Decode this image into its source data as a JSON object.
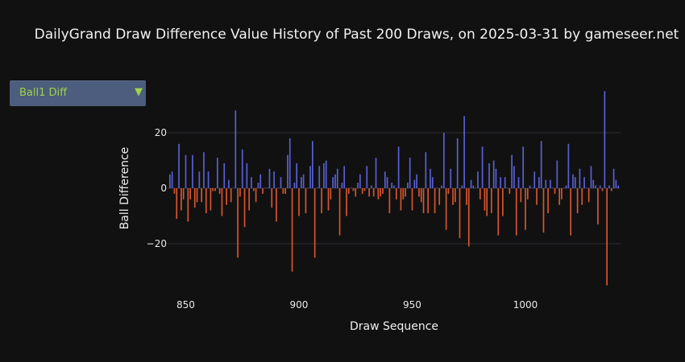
{
  "title": "DailyGrand Draw Difference Value History of Past 200 Draws, on 2025-03-31 by gameseer.net",
  "dropdown": {
    "selected": "Ball1 Diff",
    "icon": "triangle-down-icon"
  },
  "colors": {
    "background": "#111111",
    "positive": "#5a60d4",
    "negative": "#d8552f",
    "grid": "#2e2e36"
  },
  "chart_data": {
    "type": "bar",
    "xlabel": "Draw Sequence",
    "ylabel": "Ball Difference",
    "xlim": [
      842,
      1042
    ],
    "ylim": [
      -37,
      37
    ],
    "xticks": [
      850,
      900,
      950,
      1000
    ],
    "yticks": [
      -20,
      0,
      20
    ],
    "grid": true,
    "legend": "none",
    "x_start": 843,
    "values": [
      5,
      6,
      -2,
      -11,
      16,
      -8,
      -4,
      12,
      -12,
      -4,
      12,
      -7,
      -5,
      6,
      -5,
      13,
      -9,
      6,
      -8,
      -1,
      -1,
      11,
      -2,
      -10,
      9,
      -6,
      3,
      -5,
      0,
      28,
      -25,
      -3,
      14,
      -14,
      9,
      -8,
      4,
      -1,
      -5,
      2,
      5,
      -2,
      0,
      0,
      7,
      -7,
      6,
      -12,
      0,
      4,
      -2,
      -2,
      12,
      18,
      -30,
      2,
      9,
      -10,
      4,
      5,
      -9,
      0,
      8,
      17,
      -25,
      0,
      8,
      -9,
      9,
      10,
      -8,
      -4,
      4,
      5,
      7,
      -17,
      2,
      8,
      -10,
      -2,
      0,
      -1,
      -3,
      2,
      5,
      -2,
      -1,
      8,
      -3,
      1,
      -3,
      11,
      -4,
      -3,
      -2,
      6,
      4,
      -9,
      2,
      1,
      -4,
      15,
      -8,
      -4,
      -3,
      2,
      11,
      -8,
      3,
      5,
      -3,
      -5,
      -9,
      13,
      -9,
      7,
      4,
      -9,
      0,
      -6,
      1,
      20,
      -15,
      -2,
      7,
      -6,
      -5,
      18,
      -18,
      1,
      26,
      -6,
      -21,
      3,
      1,
      0,
      6,
      -4,
      15,
      -8,
      -10,
      9,
      -9,
      10,
      7,
      -17,
      4,
      -10,
      4,
      0,
      -2,
      12,
      8,
      -17,
      4,
      -5,
      15,
      -15,
      -4,
      1,
      0,
      6,
      -6,
      4,
      17,
      -16,
      3,
      -9,
      3,
      0,
      -2,
      10,
      -6,
      -4,
      0,
      1,
      16,
      -17,
      5,
      4,
      -9,
      7,
      -6,
      4,
      0,
      -5,
      8,
      3,
      1,
      -13,
      1,
      -1,
      35,
      -35,
      1,
      -1,
      7,
      3,
      1
    ]
  }
}
